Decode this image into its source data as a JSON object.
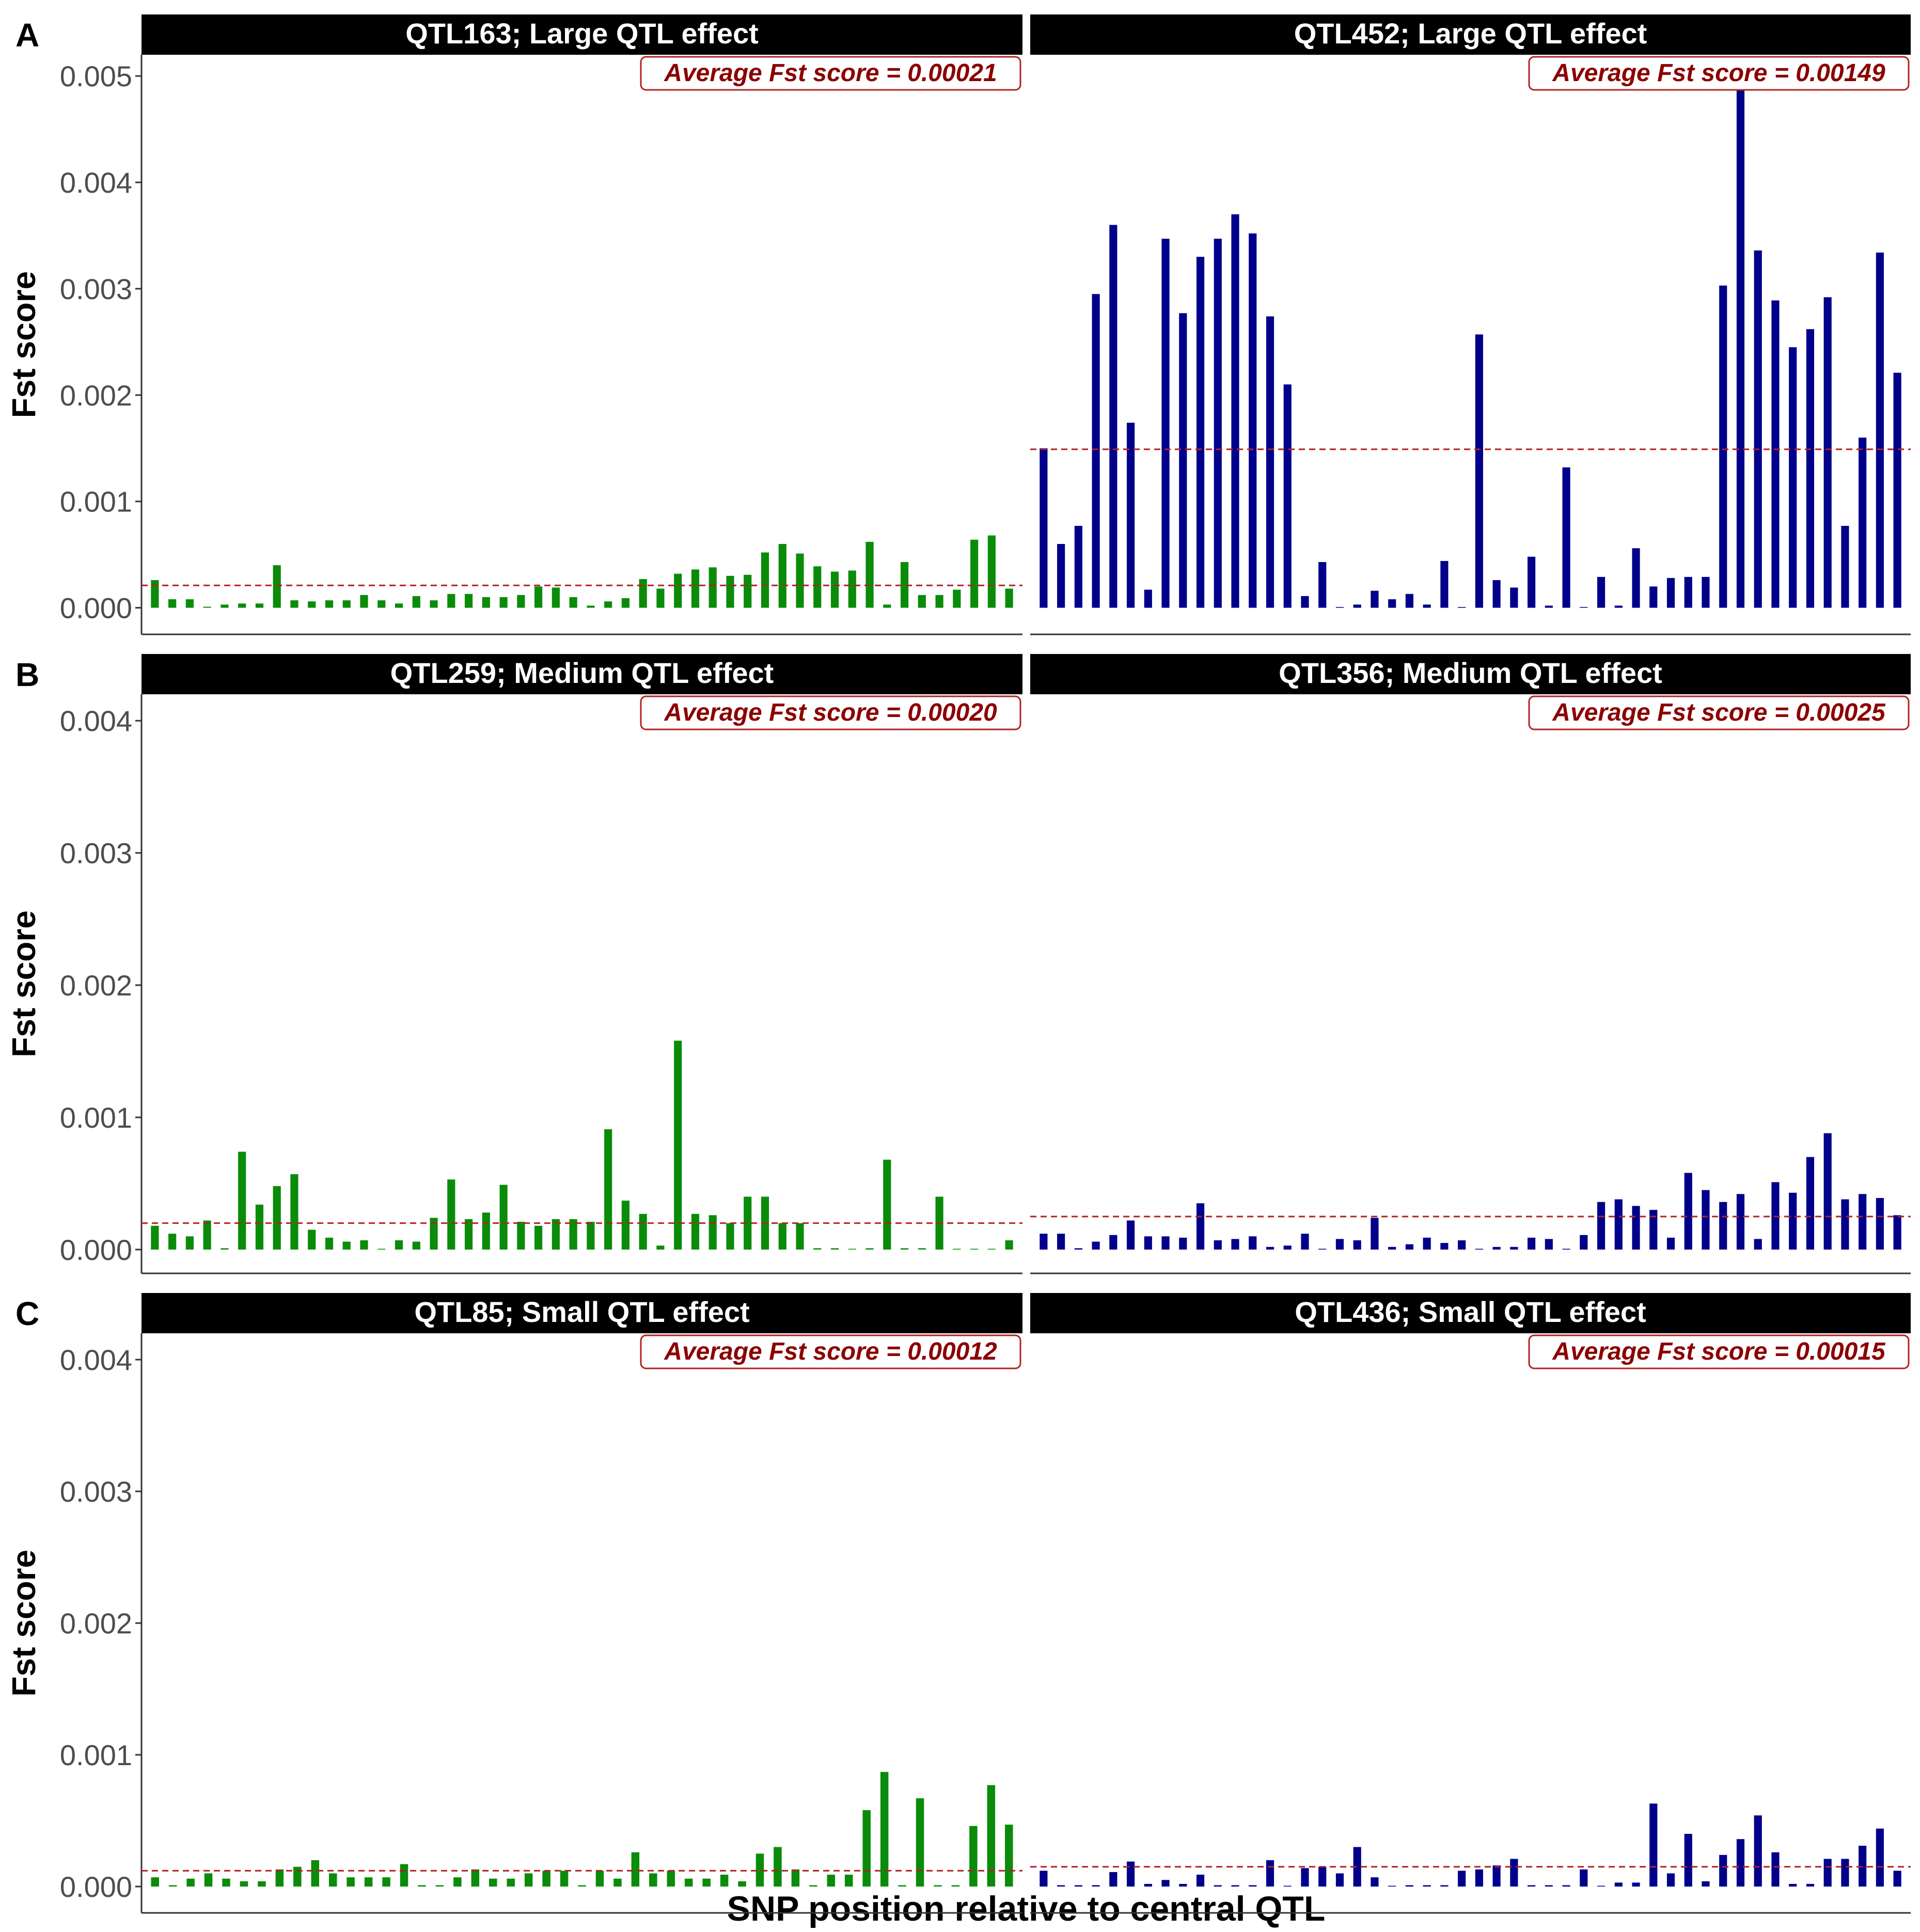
{
  "colors": {
    "green": "#0a8c0a",
    "blue": "#00008b",
    "avg_line": "#b22222",
    "avg_text": "#8b0000",
    "strip": "#000000",
    "strip_text": "#ffffff",
    "axis_text": "#4d4d4d"
  },
  "figure": {
    "y_axis_label": "Fst score",
    "x_axis_label": "SNP position relative to central QTL",
    "avg_prefix": "Average Fst score =  "
  },
  "chart_data": [
    {
      "row_label": "A",
      "type": "bar",
      "ylim": [
        -0.00025,
        0.0052
      ],
      "yticks": [
        0.0,
        0.001,
        0.002,
        0.003,
        0.004,
        0.005
      ],
      "ytick_labels": [
        "0.000",
        "0.001",
        "0.002",
        "0.003",
        "0.004",
        "0.005"
      ],
      "panels": [
        {
          "title": "QTL163; Large QTL effect",
          "avg_label": "0.00021",
          "avg": 0.00021,
          "color": "green",
          "values": [
            0.00026,
            8e-05,
            8e-05,
            1e-05,
            3e-05,
            4e-05,
            4e-05,
            0.0004,
            7e-05,
            6e-05,
            7e-05,
            7e-05,
            0.00012,
            7e-05,
            4e-05,
            0.00011,
            7e-05,
            0.00013,
            0.00013,
            0.0001,
            0.0001,
            0.00012,
            0.0002,
            0.00019,
            0.0001,
            2e-05,
            6e-05,
            9e-05,
            0.00027,
            0.00018,
            0.00032,
            0.00036,
            0.00038,
            0.0003,
            0.00031,
            0.00052,
            0.0006,
            0.00051,
            0.00039,
            0.00034,
            0.00035,
            0.00062,
            3e-05,
            0.00043,
            0.00012,
            0.00012,
            0.00017,
            0.00064,
            0.00068,
            0.00018
          ]
        },
        {
          "title": "QTL452; Large QTL effect",
          "avg_label": "0.00149",
          "avg": 0.00149,
          "color": "blue",
          "values": [
            0.0015,
            0.0006,
            0.00077,
            0.00295,
            0.0036,
            0.00174,
            0.00017,
            0.00347,
            0.00277,
            0.0033,
            0.00347,
            0.0037,
            0.00352,
            0.00274,
            0.0021,
            0.00011,
            0.00043,
            0.0,
            3e-05,
            0.00016,
            8e-05,
            0.00013,
            3e-05,
            0.00044,
            0.0,
            0.00257,
            0.00026,
            0.00019,
            0.00048,
            2e-05,
            0.00132,
            0.0,
            0.00029,
            2e-05,
            0.00056,
            0.0002,
            0.00028,
            0.00029,
            0.00029,
            0.00303,
            0.0051,
            0.00336,
            0.00289,
            0.00245,
            0.00262,
            0.00292,
            0.00077,
            0.0016,
            0.00334,
            0.00221
          ]
        }
      ]
    },
    {
      "row_label": "B",
      "type": "bar",
      "ylim": [
        -0.00018,
        0.0042
      ],
      "yticks": [
        0.0,
        0.001,
        0.002,
        0.003,
        0.004
      ],
      "ytick_labels": [
        "0.000",
        "0.001",
        "0.002",
        "0.003",
        "0.004"
      ],
      "panels": [
        {
          "title": "QTL259; Medium QTL effect",
          "avg_label": "0.00020",
          "avg": 0.0002,
          "color": "green",
          "values": [
            0.00018,
            0.00012,
            0.0001,
            0.00022,
            1e-05,
            0.00074,
            0.00034,
            0.00048,
            0.00057,
            0.00015,
            9e-05,
            6e-05,
            7e-05,
            0.0,
            7e-05,
            6e-05,
            0.00024,
            0.00053,
            0.00023,
            0.00028,
            0.00049,
            0.00021,
            0.00018,
            0.00023,
            0.00023,
            0.00021,
            0.00091,
            0.00037,
            0.00027,
            3e-05,
            0.00158,
            0.00027,
            0.00026,
            0.0002,
            0.0004,
            0.0004,
            0.0002,
            0.0002,
            1e-05,
            1e-05,
            0.0,
            1e-05,
            0.00068,
            1e-05,
            1e-05,
            0.0004,
            0.0,
            0.0,
            0.0,
            7e-05
          ]
        },
        {
          "title": "QTL356; Medium QTL effect",
          "avg_label": "0.00025",
          "avg": 0.00025,
          "color": "blue",
          "values": [
            0.00012,
            0.00012,
            1e-05,
            6e-05,
            0.00011,
            0.00022,
            0.0001,
            0.0001,
            9e-05,
            0.00035,
            7e-05,
            8e-05,
            0.0001,
            2e-05,
            3e-05,
            0.00012,
            0.0,
            8e-05,
            7e-05,
            0.00024,
            2e-05,
            4e-05,
            9e-05,
            5e-05,
            7e-05,
            0.0,
            2e-05,
            2e-05,
            9e-05,
            8e-05,
            0.0,
            0.00011,
            0.00036,
            0.00038,
            0.00033,
            0.0003,
            9e-05,
            0.00058,
            0.00045,
            0.00036,
            0.00042,
            8e-05,
            0.00051,
            0.00043,
            0.0007,
            0.00088,
            0.00038,
            0.00042,
            0.00039,
            0.00026
          ]
        }
      ]
    },
    {
      "row_label": "C",
      "type": "bar",
      "ylim": [
        -0.0002,
        0.0042
      ],
      "yticks": [
        0.0,
        0.001,
        0.002,
        0.003,
        0.004
      ],
      "ytick_labels": [
        "0.000",
        "0.001",
        "0.002",
        "0.003",
        "0.004"
      ],
      "panels": [
        {
          "title": "QTL85; Small QTL effect",
          "avg_label": "0.00012",
          "avg": 0.00012,
          "color": "green",
          "values": [
            7e-05,
            1e-05,
            6e-05,
            0.0001,
            6e-05,
            4e-05,
            4e-05,
            0.00013,
            0.00015,
            0.0002,
            0.0001,
            7e-05,
            7e-05,
            7e-05,
            0.00017,
            1e-05,
            1e-05,
            7e-05,
            0.00013,
            6e-05,
            6e-05,
            0.0001,
            0.00012,
            0.00012,
            1e-05,
            0.00012,
            6e-05,
            0.00026,
            0.0001,
            0.00012,
            6e-05,
            6e-05,
            9e-05,
            4e-05,
            0.00025,
            0.0003,
            0.00013,
            1e-05,
            9e-05,
            9e-05,
            0.00058,
            0.00087,
            1e-05,
            0.00067,
            1e-05,
            1e-05,
            0.00046,
            0.00077,
            0.00047
          ]
        },
        {
          "title": "QTL436; Small QTL effect",
          "avg_label": "0.00015",
          "avg": 0.00015,
          "color": "blue",
          "values": [
            0.00012,
            1e-05,
            1e-05,
            1e-05,
            0.00011,
            0.00019,
            2e-05,
            5e-05,
            2e-05,
            9e-05,
            1e-05,
            1e-05,
            1e-05,
            0.0002,
            0.0,
            0.00014,
            0.00015,
            0.0001,
            0.0003,
            7e-05,
            0.0,
            1e-05,
            1e-05,
            1e-05,
            0.00012,
            0.00013,
            0.00016,
            0.00021,
            1e-05,
            1e-05,
            1e-05,
            0.00013,
            0.0,
            3e-05,
            3e-05,
            0.00063,
            0.0001,
            0.0004,
            4e-05,
            0.00024,
            0.00036,
            0.00054,
            0.00026,
            2e-05,
            2e-05,
            0.00021,
            0.00021,
            0.00031,
            0.00044,
            0.00012
          ]
        }
      ]
    }
  ]
}
